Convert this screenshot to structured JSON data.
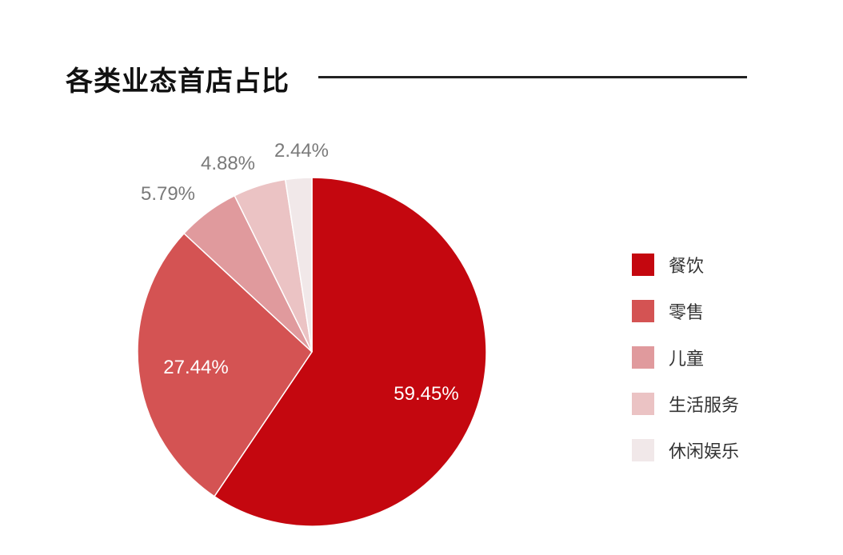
{
  "header": {
    "title": "各类业态首店占比"
  },
  "chart_data": {
    "type": "pie",
    "title": "各类业态首店占比",
    "categories": [
      "餐饮",
      "零售",
      "儿童",
      "生活服务",
      "休闲娱乐"
    ],
    "values": [
      59.45,
      27.44,
      5.79,
      4.88,
      2.44
    ],
    "labels": [
      "59.45%",
      "27.44%",
      "5.79%",
      "4.88%",
      "2.44%"
    ],
    "colors": [
      "#c4070f",
      "#d45353",
      "#e09a9d",
      "#ebc3c4",
      "#f1e8e9"
    ],
    "start_angle": "12 o'clock, clockwise",
    "legend_position": "right"
  },
  "legend": {
    "items": [
      {
        "label": "餐饮",
        "color": "#c4070f"
      },
      {
        "label": "零售",
        "color": "#d45353"
      },
      {
        "label": "儿童",
        "color": "#e09a9d"
      },
      {
        "label": "生活服务",
        "color": "#ebc3c4"
      },
      {
        "label": "休闲娱乐",
        "color": "#f1e8e9"
      }
    ]
  }
}
